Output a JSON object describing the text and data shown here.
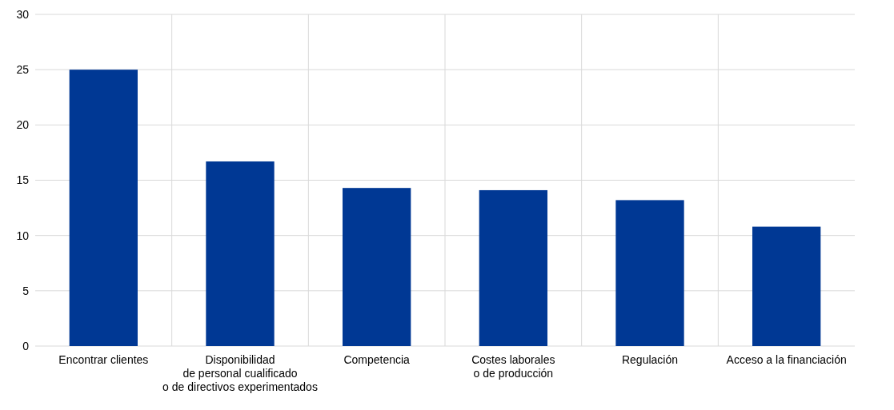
{
  "chart_data": {
    "type": "bar",
    "categories": [
      "Encontrar clientes",
      "Disponibilidad\nde personal cualificado\no de directivos experimentados",
      "Competencia",
      "Costes laborales\no de producción",
      "Regulación",
      "Acceso a la financiación"
    ],
    "values": [
      25.0,
      16.7,
      14.3,
      14.1,
      13.2,
      10.8
    ],
    "color": "#003894",
    "ylim": [
      0,
      30
    ],
    "yticks": [
      0,
      5,
      10,
      15,
      20,
      25,
      30
    ],
    "grid": true
  }
}
